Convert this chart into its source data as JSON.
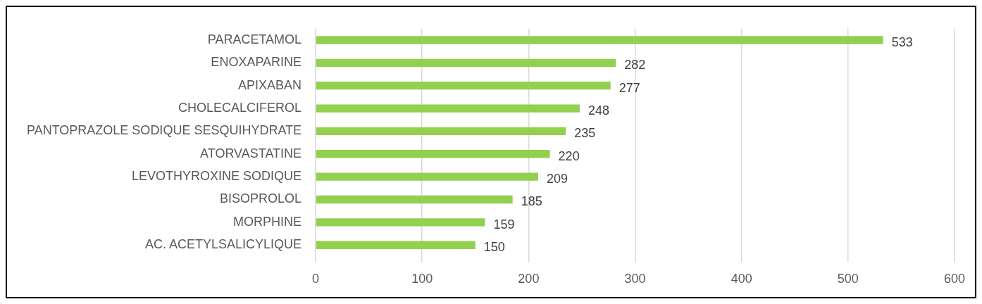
{
  "chart_data": {
    "type": "bar",
    "orientation": "horizontal",
    "categories": [
      "PARACETAMOL",
      "ENOXAPARINE",
      "APIXABAN",
      "CHOLECALCIFEROL",
      "PANTOPRAZOLE SODIQUE SESQUIHYDRATE",
      "ATORVASTATINE",
      "LEVOTHYROXINE SODIQUE",
      "BISOPROLOL",
      "MORPHINE",
      "AC. ACETYLSALICYLIQUE"
    ],
    "values": [
      533,
      282,
      277,
      248,
      235,
      220,
      209,
      185,
      159,
      150
    ],
    "color": "#92d050",
    "xlim": [
      0,
      600
    ],
    "xticks": [
      0,
      100,
      200,
      300,
      400,
      500,
      600
    ],
    "grid": "x",
    "data_labels": true
  }
}
